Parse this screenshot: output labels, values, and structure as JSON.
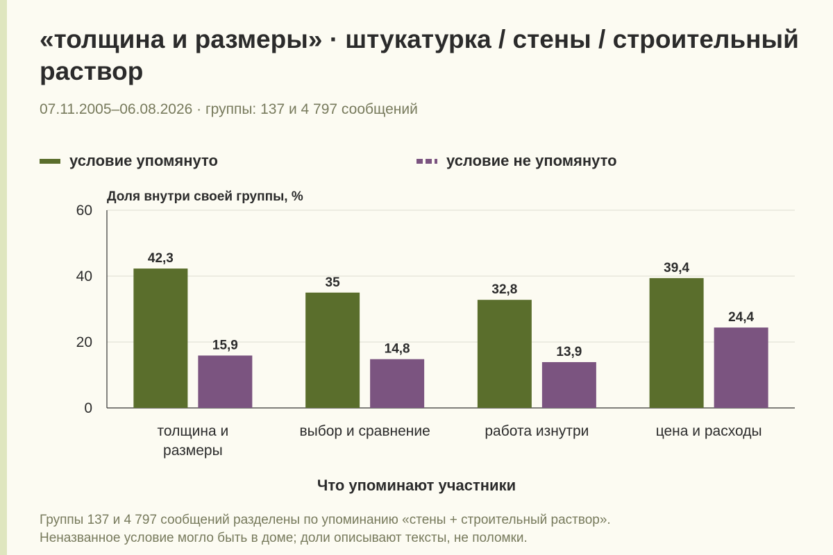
{
  "title": "«толщина и размеры» · штукатурка / стены / строительный раствор",
  "subtitle": "07.11.2005–06.08.2026 · группы: 137 и 4 797 сообщений",
  "legend": {
    "mentioned": "условие упомянуто",
    "not_mentioned": "условие не упомянуто"
  },
  "note": {
    "line1": "Группы 137 и 4 797 сообщений разделены по упоминанию «стены + строительный раствор».",
    "line2": "Неназванное условие могло быть в доме; доли описывают тексты, не поломки."
  },
  "colors": {
    "mentioned": "#5a6e2c",
    "not_mentioned": "#7b5480",
    "grid": "#dcdcd0",
    "axis": "#333333"
  },
  "chart_data": {
    "type": "bar",
    "categories": [
      [
        "толщина и",
        "размеры"
      ],
      [
        "выбор и сравнение"
      ],
      [
        "работа изнутри"
      ],
      [
        "цена и расходы"
      ]
    ],
    "series": [
      {
        "name": "условие упомянуто",
        "values": [
          42.3,
          35,
          32.8,
          39.4
        ],
        "labels": [
          "42,3",
          "35",
          "32,8",
          "39,4"
        ]
      },
      {
        "name": "условие не упомянуто",
        "values": [
          15.9,
          14.8,
          13.9,
          24.4
        ],
        "labels": [
          "15,9",
          "14,8",
          "13,9",
          "24,4"
        ]
      }
    ],
    "ylabel": "Доля внутри своей группы, %",
    "xlabel": "Что упоминают участники",
    "ylim": [
      0,
      60
    ],
    "yticks": [
      0,
      20,
      40,
      60
    ],
    "grid": true,
    "legend_position": "top"
  }
}
